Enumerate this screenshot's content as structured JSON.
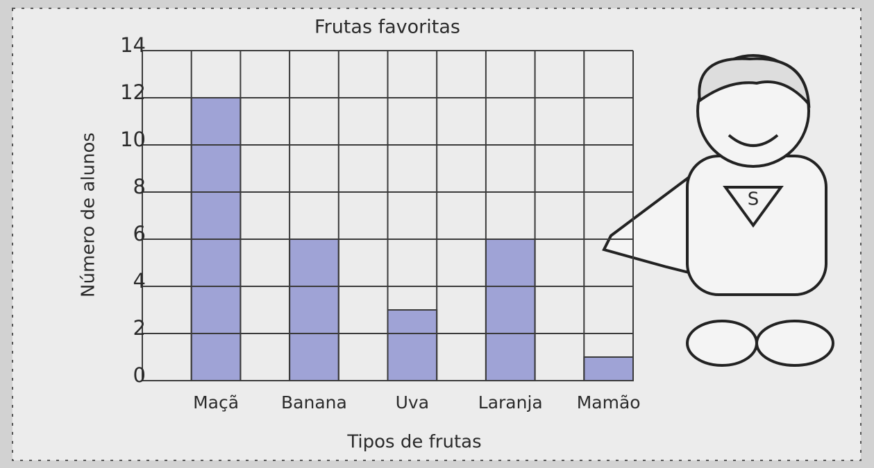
{
  "chart_data": {
    "type": "bar",
    "title": "Frutas favoritas",
    "x_label": "Tipos de frutas",
    "y_label": "Número de alunos",
    "categories": [
      "Maçã",
      "Banana",
      "Uva",
      "Laranja",
      "Mamão"
    ],
    "values": [
      12,
      6,
      3,
      6,
      1
    ],
    "color": "#9fa3d6",
    "ylim": [
      0,
      14
    ],
    "yticks": [
      0,
      2,
      4,
      6,
      8,
      10,
      12,
      14
    ],
    "grid": true
  }
}
